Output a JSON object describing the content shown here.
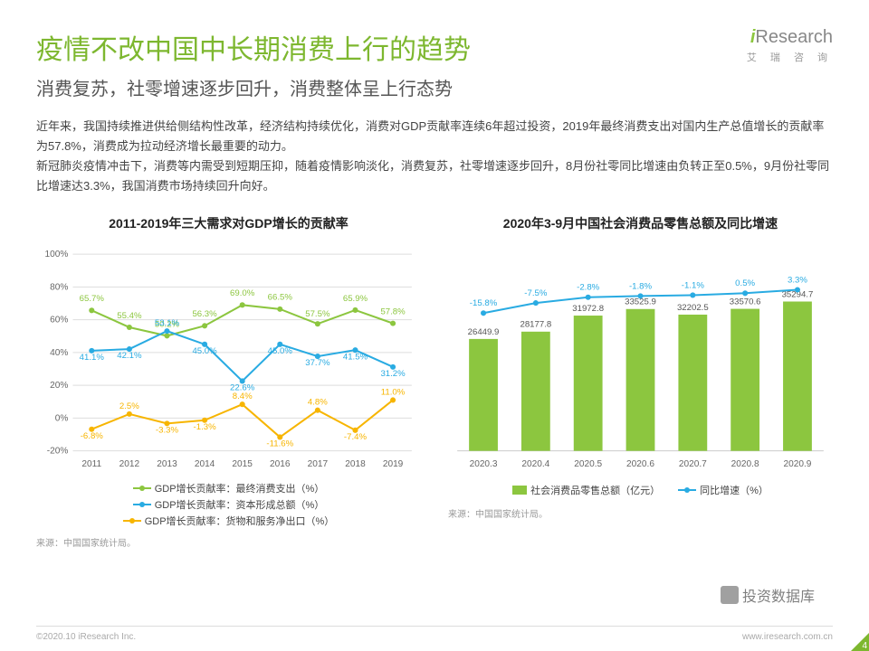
{
  "header": {
    "main_title": "疫情不改中国中长期消费上行的趋势",
    "sub_title": "消费复苏，社零增速逐步回升，消费整体呈上行态势",
    "logo_text": "Research",
    "logo_sub": "艾 瑞 咨 询"
  },
  "body_text": "近年来，我国持续推进供给侧结构性改革，经济结构持续优化，消费对GDP贡献率连续6年超过投资，2019年最终消费支出对国内生产总值增长的贡献率为57.8%，消费成为拉动经济增长最重要的动力。\n新冠肺炎疫情冲击下，消费等内需受到短期压抑，随着疫情影响淡化，消费复苏，社零增速逐步回升，8月份社零同比增速由负转正至0.5%，9月份社零同比增速达3.3%，我国消费市场持续回升向好。",
  "chart_left": {
    "title": "2011-2019年三大需求对GDP增长的贡献率",
    "type": "line",
    "categories": [
      "2011",
      "2012",
      "2013",
      "2014",
      "2015",
      "2016",
      "2017",
      "2018",
      "2019"
    ],
    "ylim": [
      -20,
      100
    ],
    "ytick_step": 20,
    "grid_color": "#dddddd",
    "series": [
      {
        "name": "GDP增长贡献率：最终消费支出（%）",
        "color": "#8cc63f",
        "labels": [
          "65.7%",
          "55.4%",
          "50.2%",
          "56.3%",
          "69.0%",
          "66.5%",
          "57.5%",
          "65.9%",
          "57.8%"
        ],
        "values": [
          65.7,
          55.4,
          50.2,
          56.3,
          69.0,
          66.5,
          57.5,
          65.9,
          57.8
        ]
      },
      {
        "name": "GDP增长贡献率：资本形成总额（%）",
        "color": "#29abe2",
        "labels": [
          "41.1%",
          "42.1%",
          "53.1%",
          "45.0%",
          "22.6%",
          "45.0%",
          "37.7%",
          "41.5%",
          "31.2%"
        ],
        "values": [
          41.1,
          42.1,
          53.1,
          45.0,
          22.6,
          45.0,
          37.7,
          41.5,
          31.2
        ]
      },
      {
        "name": "GDP增长贡献率：货物和服务净出口（%）",
        "color": "#f7b500",
        "labels": [
          "-6.8%",
          "2.5%",
          "-3.3%",
          "-1.3%",
          "8.4%",
          "-11.6%",
          "4.8%",
          "-7.4%",
          "11.0%"
        ],
        "values": [
          -6.8,
          2.5,
          -3.3,
          -1.3,
          8.4,
          -11.6,
          4.8,
          -7.4,
          11.0
        ]
      }
    ],
    "source": "来源：中国国家统计局。",
    "line_width": 2,
    "marker_size": 3,
    "label_fontsize": 9.5
  },
  "chart_right": {
    "title": "2020年3-9月中国社会消费品零售总额及同比增速",
    "type": "bar+line",
    "categories": [
      "2020.3",
      "2020.4",
      "2020.5",
      "2020.6",
      "2020.7",
      "2020.8",
      "2020.9"
    ],
    "bar": {
      "name": "社会消费品零售总额（亿元）",
      "color": "#8cc63f",
      "labels": [
        "26449.9",
        "28177.8",
        "31972.8",
        "33525.9",
        "32202.5",
        "33570.6",
        "35294.7"
      ],
      "values": [
        26449.9,
        28177.8,
        31972.8,
        33525.9,
        32202.5,
        33570.6,
        35294.7
      ],
      "ymax": 40000,
      "bar_width": 0.55
    },
    "line": {
      "name": "同比增速（%）",
      "color": "#29abe2",
      "labels": [
        "-15.8%",
        "-7.5%",
        "-2.8%",
        "-1.8%",
        "-1.1%",
        "0.5%",
        "3.3%"
      ],
      "values": [
        -15.8,
        -7.5,
        -2.8,
        -1.8,
        -1.1,
        0.5,
        3.3
      ],
      "ylim": [
        -20,
        10
      ],
      "line_width": 2,
      "marker_size": 3
    },
    "source": "来源：中国国家统计局。",
    "label_fontsize": 10
  },
  "footer": {
    "copyright": "©2020.10 iResearch Inc.",
    "site": "www.iresearch.com.cn",
    "page": "4"
  },
  "watermark": "投资数据库"
}
